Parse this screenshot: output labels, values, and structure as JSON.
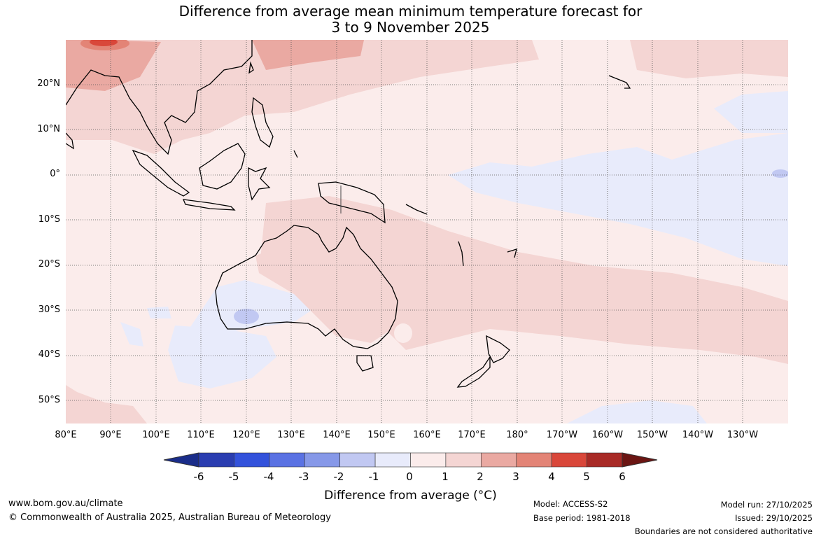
{
  "title_line1": "Difference from average mean minimum temperature forecast for",
  "title_line2": "3 to 9 November 2025",
  "lat_labels": [
    "20°N",
    "10°N",
    "0°",
    "10°S",
    "20°S",
    "30°S",
    "40°S",
    "50°S"
  ],
  "lon_labels": [
    "80°E",
    "90°E",
    "100°E",
    "110°E",
    "120°E",
    "130°E",
    "140°E",
    "150°E",
    "160°E",
    "170°E",
    "180°",
    "170°W",
    "160°W",
    "150°W",
    "140°W",
    "130°W"
  ],
  "colorbar": {
    "ticks": [
      "-6",
      "-5",
      "-4",
      "-3",
      "-2",
      "-1",
      "0",
      "1",
      "2",
      "3",
      "4",
      "5",
      "6"
    ],
    "colors": [
      "#1a2d8a",
      "#2a3db0",
      "#3352db",
      "#5a72e3",
      "#8698e8",
      "#c1c8f2",
      "#e8ebfb",
      "#fbeceb",
      "#f4d5d3",
      "#eaa9a2",
      "#e38476",
      "#d9473a",
      "#a82a26",
      "#6b1513"
    ],
    "label": "Difference from average (°C)"
  },
  "footer": {
    "url": "www.bom.gov.au/climate",
    "copyright": "© Commonwealth of Australia 2025, Australian Bureau of Meteorology",
    "model": "Model: ACCESS-S2",
    "base_period": "Base period: 1981-2018",
    "model_run": "Model run: 27/10/2025",
    "issued": "Issued: 29/10/2025",
    "boundaries": "Boundaries are not considered authoritative"
  }
}
